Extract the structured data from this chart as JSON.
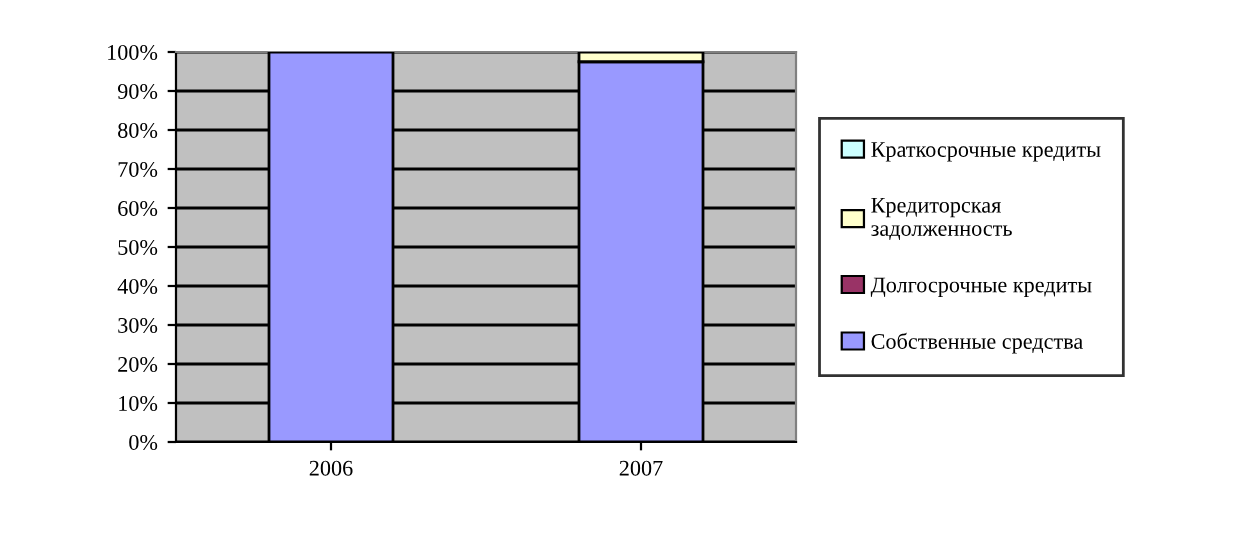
{
  "chart_data": {
    "type": "bar",
    "stacked": true,
    "categories": [
      "2006",
      "2007"
    ],
    "series": [
      {
        "name": "Собственные средства",
        "color": "#9999ff",
        "values": [
          100,
          97.5
        ]
      },
      {
        "name": "Долгосрочные кредиты",
        "color": "#993366",
        "values": [
          0,
          0
        ]
      },
      {
        "name": "Кредиторская\nзадолженность",
        "color": "#ffffcc",
        "values": [
          0,
          2.5
        ]
      },
      {
        "name": "Краткосрочные кредиты",
        "color": "#ccffff",
        "values": [
          0,
          0
        ]
      }
    ],
    "ylim": [
      0,
      100
    ],
    "yticks": [
      {
        "value": 0,
        "label": "0%"
      },
      {
        "value": 10,
        "label": "10%"
      },
      {
        "value": 20,
        "label": "20%"
      },
      {
        "value": 30,
        "label": "30%"
      },
      {
        "value": 40,
        "label": "40%"
      },
      {
        "value": 50,
        "label": "50%"
      },
      {
        "value": 60,
        "label": "60%"
      },
      {
        "value": 70,
        "label": "70%"
      },
      {
        "value": 80,
        "label": "80%"
      },
      {
        "value": 90,
        "label": "90%"
      },
      {
        "value": 100,
        "label": "100%"
      }
    ],
    "grid": "y",
    "legend": "right"
  }
}
